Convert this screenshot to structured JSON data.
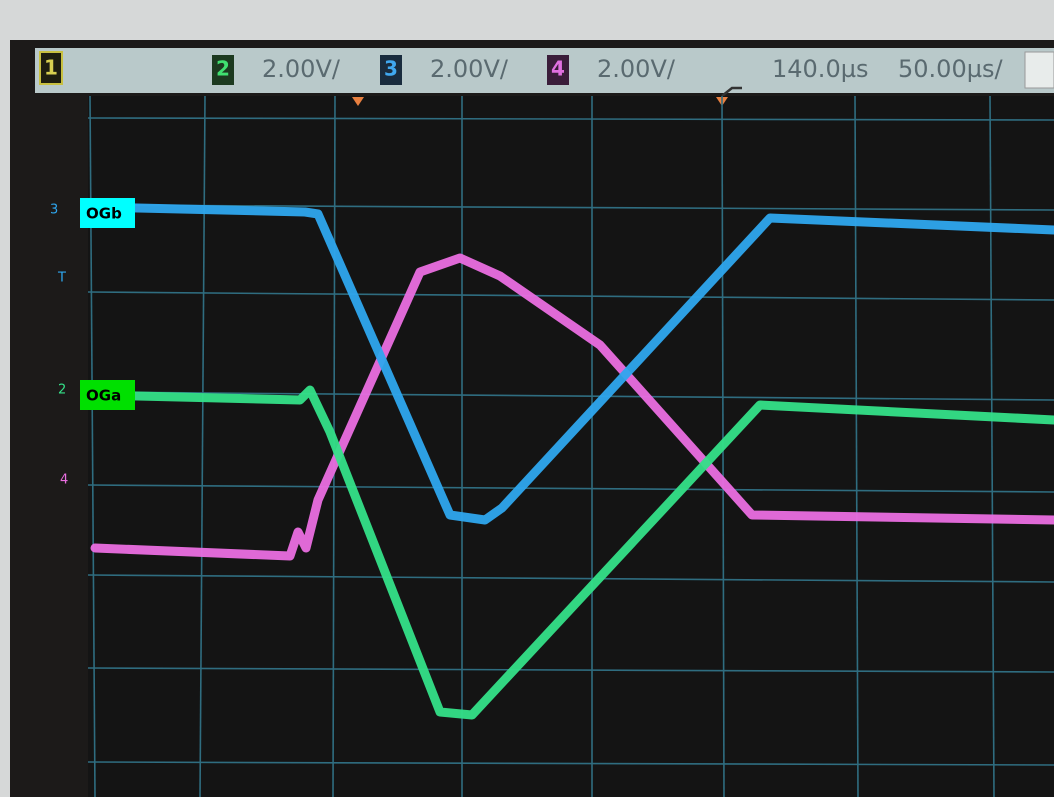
{
  "header": {
    "channels": [
      {
        "number": "1"
      },
      {
        "number": "2",
        "scale": "2.00V/"
      },
      {
        "number": "3",
        "scale": "2.00V/"
      },
      {
        "number": "4",
        "scale": "2.00V/"
      }
    ],
    "trigger_time": "140.0µs",
    "time_scale": "50.00µs/"
  },
  "labels": [
    {
      "text": "OGb"
    },
    {
      "text": "OGa"
    }
  ],
  "markers": [
    "3",
    "T",
    "2",
    "4"
  ]
}
